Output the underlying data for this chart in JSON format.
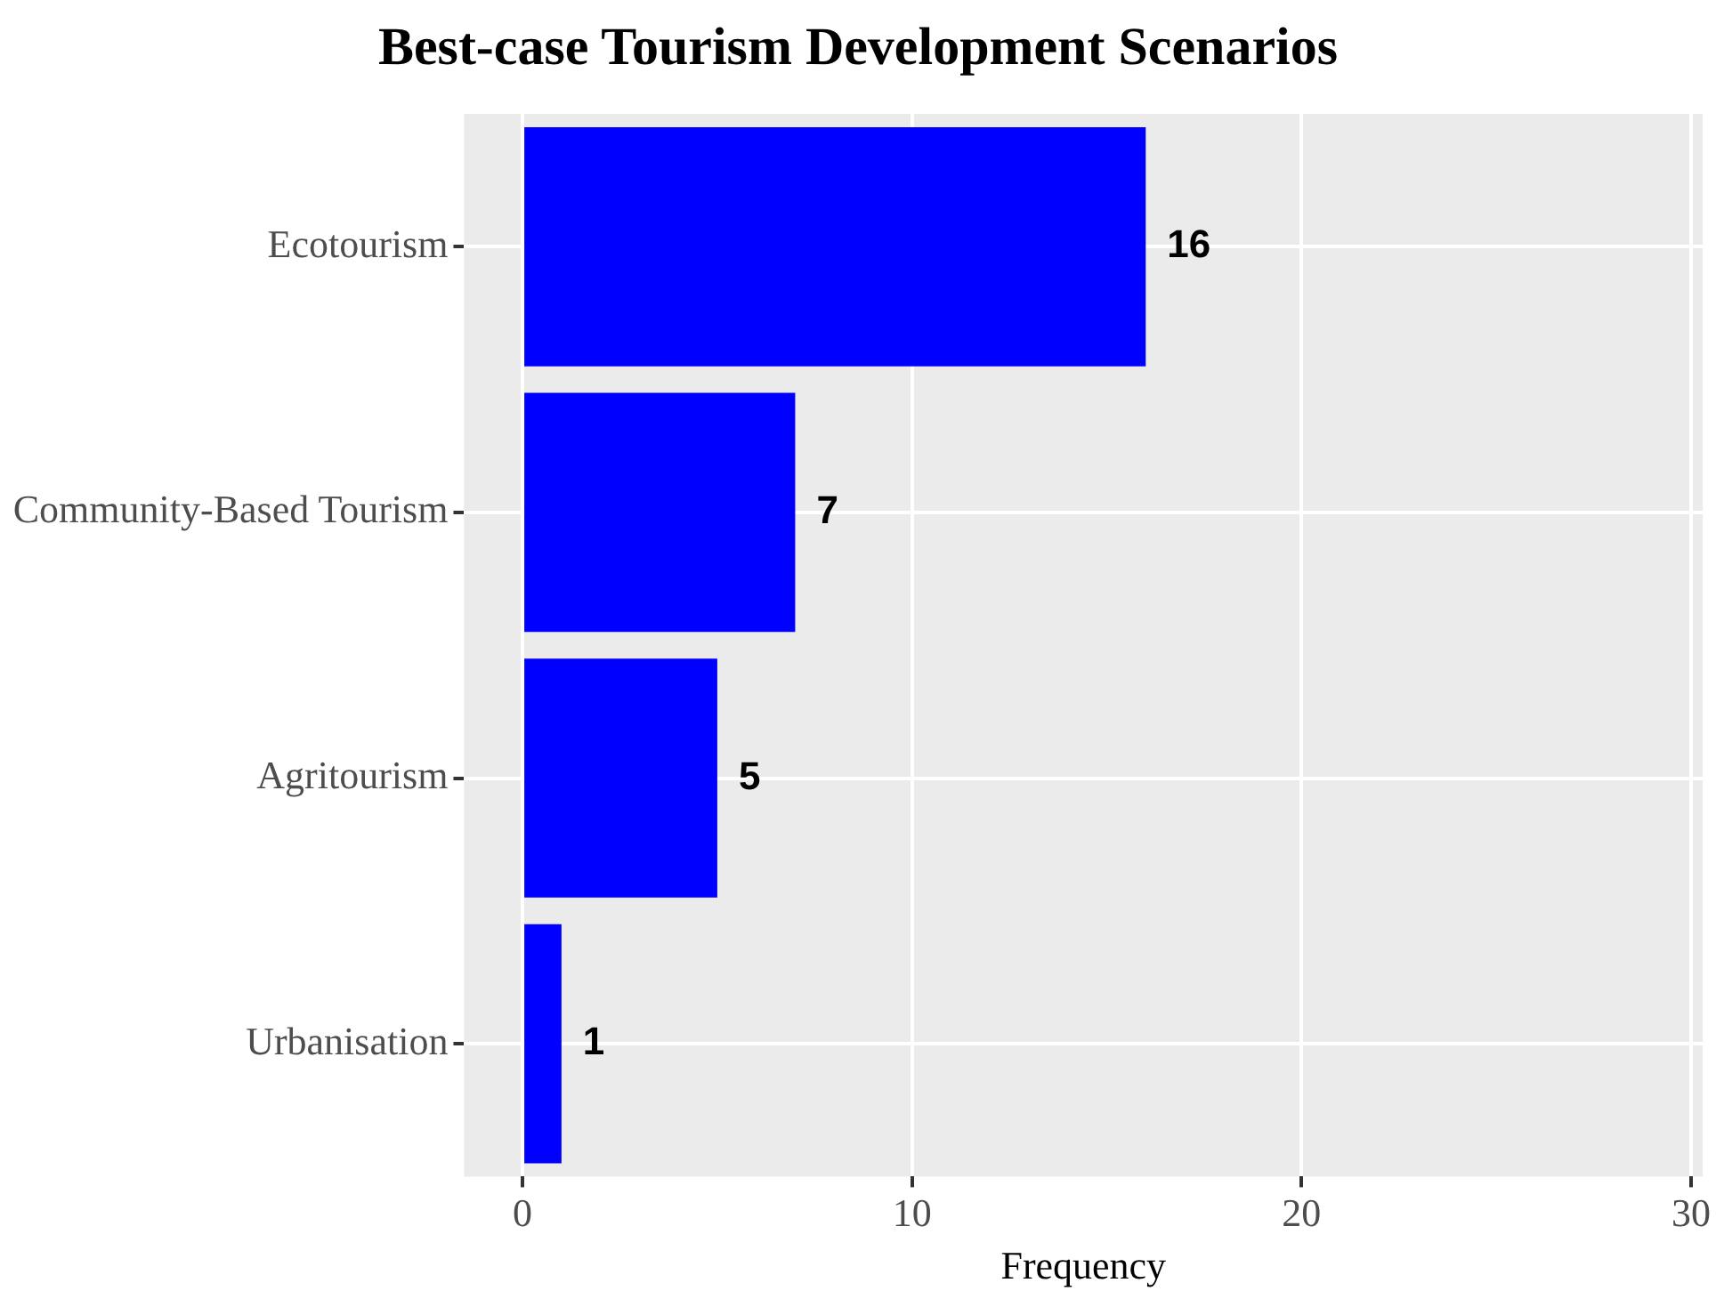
{
  "chart_data": {
    "type": "bar",
    "orientation": "horizontal",
    "title": "Best-case Tourism Development Scenarios",
    "xlabel": "Frequency",
    "categories": [
      "Ecotourism",
      "Community-Based Tourism",
      "Agritourism",
      "Urbanisation"
    ],
    "values": [
      16,
      7,
      5,
      1
    ],
    "color": "#0000ff",
    "xlim": [
      -1.5,
      30.3
    ],
    "xticks": [
      0,
      10,
      20,
      30
    ],
    "grid": true,
    "data_labels": true,
    "legend": false
  }
}
